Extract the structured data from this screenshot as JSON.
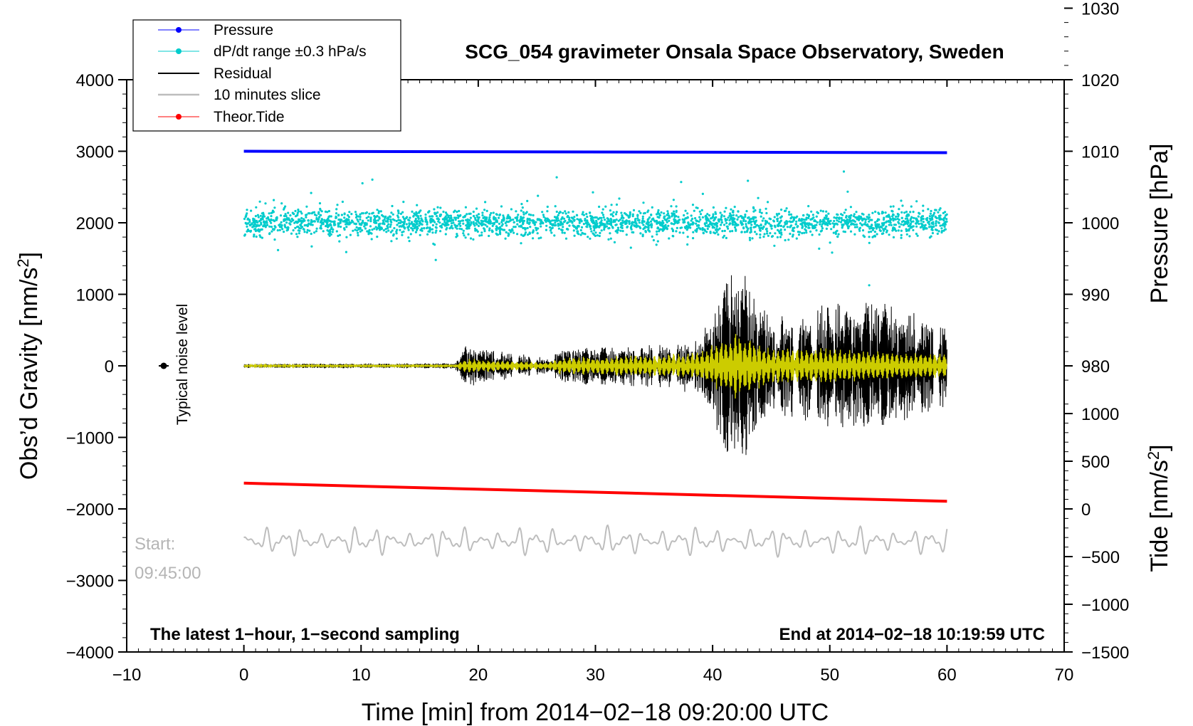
{
  "chart_data": {
    "type": "line",
    "title": "SCG_054 gravimeter Onsala Space Observatory, Sweden",
    "xlabel": "Time [min] from 2014−02−18 09:20:00 UTC",
    "ylabel_left": "Obs’d Gravity [nm/s²]",
    "ylabel_left_main": "Obs’d Gravity [nm/s",
    "ylabel_left_sup": "2",
    "ylabel_left_end": "]",
    "ylabel_right_pressure": "Pressure [hPa]",
    "ylabel_right_tide": "Tide [nm/s²]",
    "ylabel_right_tide_main": "Tide [nm/s",
    "ylabel_right_tide_sup": "2",
    "ylabel_right_tide_end": "]",
    "xlim": [
      -10,
      70
    ],
    "ylim": [
      -4000,
      4000
    ],
    "x_ticks": [
      -10,
      0,
      10,
      20,
      30,
      40,
      50,
      60,
      70
    ],
    "x_tick_labels": [
      "−10",
      "0",
      "10",
      "20",
      "30",
      "40",
      "50",
      "60",
      "70"
    ],
    "y_ticks": [
      -4000,
      -3000,
      -2000,
      -1000,
      0,
      1000,
      2000,
      3000,
      4000
    ],
    "y_tick_labels": [
      "−4000",
      "−3000",
      "−2000",
      "−1000",
      "0",
      "1000",
      "2000",
      "3000",
      "4000"
    ],
    "pressure_axis": {
      "ticks": [
        980,
        990,
        1000,
        1010,
        1020,
        1030
      ],
      "tick_labels": [
        "980",
        "990",
        "1000",
        "1010",
        "1020",
        "1030"
      ],
      "gravity_equiv_of_1000hpa": 2000,
      "gravity_per_hpa": 100
    },
    "tide_axis": {
      "ticks": [
        -1500,
        -1000,
        -500,
        0,
        500,
        1000
      ],
      "tick_labels": [
        "−1500",
        "−1000",
        "−500",
        "0",
        "500",
        "1000"
      ],
      "gravity_equiv_of_0": -2000,
      "gravity_per_unit": 1.333
    },
    "legend": {
      "position": "top-left",
      "items": [
        {
          "label": "Pressure",
          "color": "#0000ff",
          "marker": true
        },
        {
          "label": "dP/dt range ±0.3 hPa/s",
          "color": "#00cccc",
          "marker": true
        },
        {
          "label": "Residual",
          "color": "#000000",
          "marker": false
        },
        {
          "label": "10 minutes slice",
          "color": "#bdbdbd",
          "marker": false
        },
        {
          "label": "Theor.Tide",
          "color": "#ff0000",
          "marker": true
        }
      ]
    },
    "series": [
      {
        "name": "Pressure",
        "unit": "hPa",
        "color": "#0000ff",
        "x": [
          0,
          60
        ],
        "values": [
          1010.0,
          1009.8
        ]
      },
      {
        "name": "dP/dt range ±0.3 hPa/s",
        "color": "#00cccc",
        "x_range": [
          0,
          60
        ],
        "center_gravity": 2000,
        "spread_gravity": 130
      },
      {
        "name": "Residual",
        "color": "#000000",
        "x": [
          0,
          18,
          19,
          26,
          27,
          35,
          39,
          42,
          45,
          50,
          55,
          60
        ],
        "amplitude_envelope": [
          30,
          40,
          300,
          100,
          250,
          300,
          400,
          1500,
          700,
          900,
          900,
          600
        ]
      },
      {
        "name": "Filtered",
        "color": "#cccc00",
        "x": [
          0,
          18,
          19,
          26,
          27,
          35,
          39,
          42,
          45,
          50,
          55,
          60
        ],
        "amplitude_envelope": [
          15,
          20,
          100,
          50,
          120,
          150,
          200,
          500,
          250,
          250,
          200,
          180
        ]
      },
      {
        "name": "10 minutes slice",
        "color": "#bdbdbd",
        "x_range": [
          0,
          60
        ],
        "center_gravity": -2450,
        "amplitude": 200
      },
      {
        "name": "Theor.Tide",
        "unit": "nm/s²",
        "color": "#ff0000",
        "x": [
          0,
          60
        ],
        "values": [
          270,
          80
        ]
      }
    ],
    "annotations": {
      "noise_label": "Typical noise level",
      "start_label": "Start:",
      "start_time": "09:45:00",
      "bottom_left": "The latest 1−hour, 1−second sampling",
      "bottom_right": "End at 2014−02−18 10:19:59 UTC"
    }
  },
  "colors": {
    "pressure": "#0000ff",
    "dpdt": "#00cccc",
    "residual": "#000000",
    "filtered": "#cccc00",
    "slice": "#bdbdbd",
    "tide": "#ff0000"
  }
}
